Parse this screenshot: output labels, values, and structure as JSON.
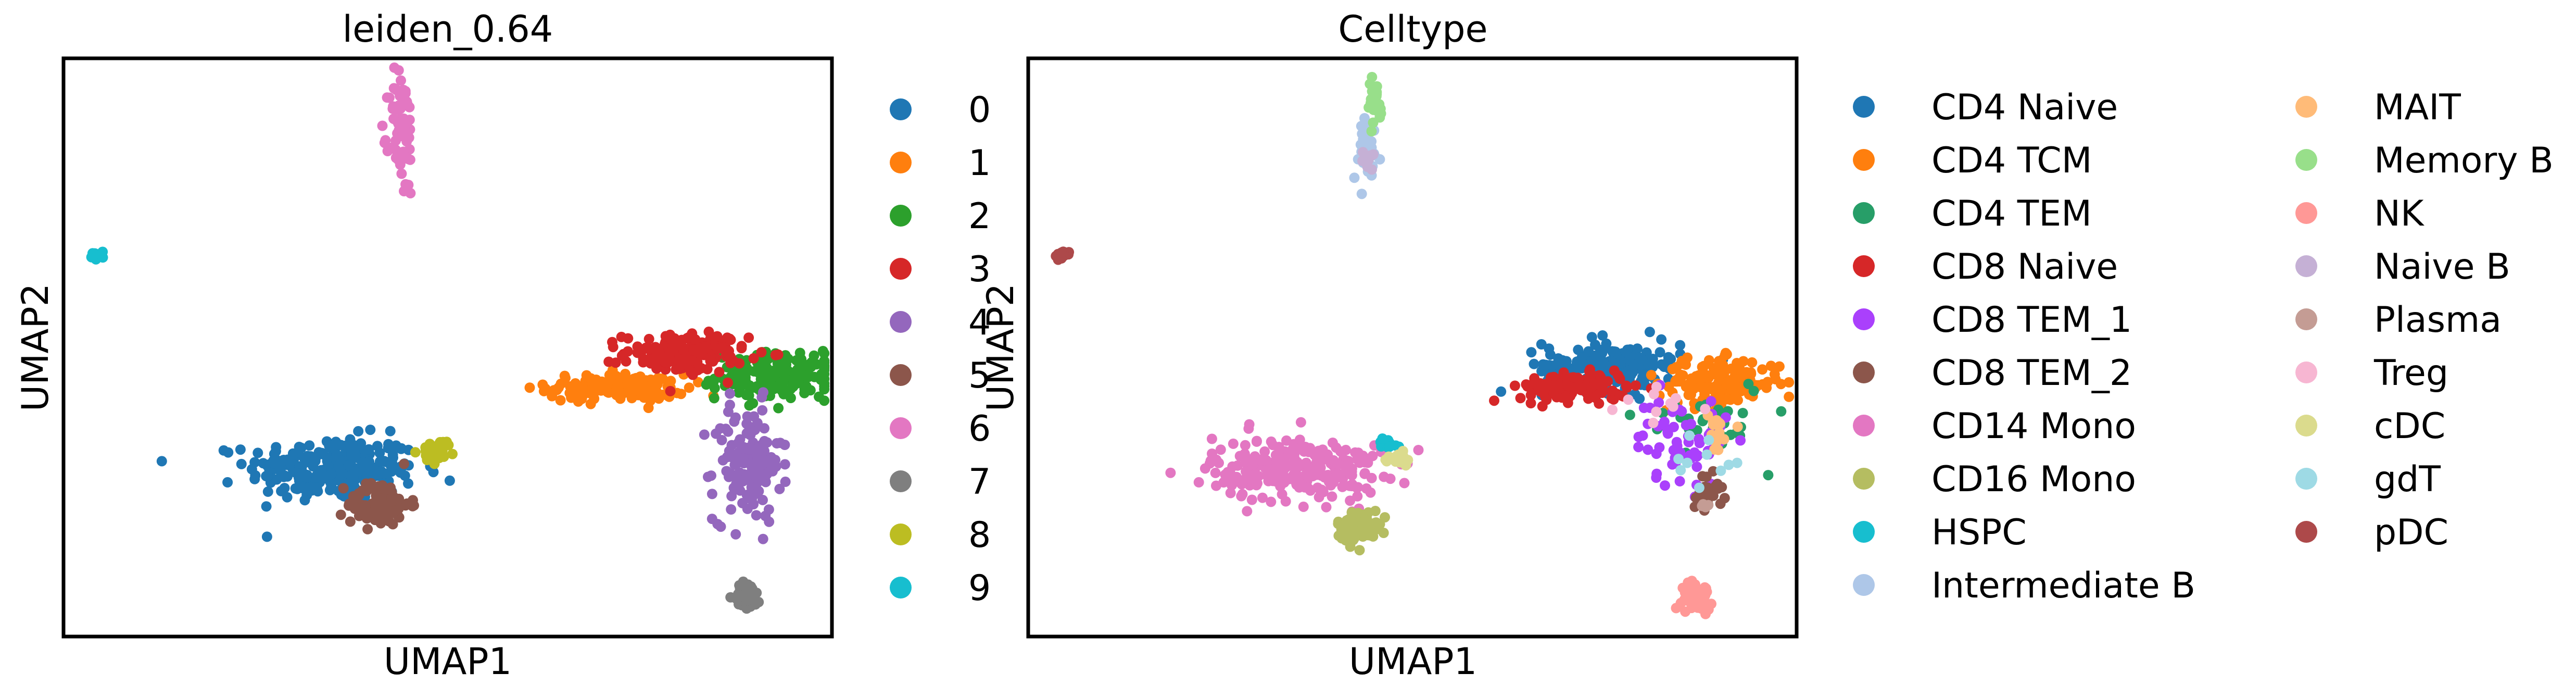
{
  "chart_data": [
    {
      "type": "scatter",
      "title": "leiden_0.64",
      "xlabel": "UMAP1",
      "ylabel": "UMAP2",
      "grid": false,
      "legend_position": "right",
      "legend": [
        {
          "label": "0",
          "color": "#1f77b4"
        },
        {
          "label": "1",
          "color": "#ff7f0e"
        },
        {
          "label": "2",
          "color": "#2ca02c"
        },
        {
          "label": "3",
          "color": "#d62728"
        },
        {
          "label": "4",
          "color": "#9467bd"
        },
        {
          "label": "5",
          "color": "#8c564b"
        },
        {
          "label": "6",
          "color": "#e377c2"
        },
        {
          "label": "7",
          "color": "#7f7f7f"
        },
        {
          "label": "8",
          "color": "#bcbd22"
        },
        {
          "label": "9",
          "color": "#17becf"
        }
      ],
      "clusters": [
        {
          "label": "0",
          "cx": 3.5,
          "cy": 2.9,
          "sx": 0.55,
          "sy": 0.28,
          "n": 260
        },
        {
          "label": "1",
          "cx": 7.2,
          "cy": 4.3,
          "sx": 0.45,
          "sy": 0.12,
          "n": 150
        },
        {
          "label": "2",
          "cx": 9.3,
          "cy": 4.5,
          "sx": 0.4,
          "sy": 0.2,
          "n": 170
        },
        {
          "label": "3",
          "cx": 8.1,
          "cy": 4.9,
          "sx": 0.4,
          "sy": 0.17,
          "n": 160
        },
        {
          "label": "4",
          "cx": 8.9,
          "cy": 3.0,
          "sx": 0.22,
          "sy": 0.5,
          "n": 140
        },
        {
          "label": "5",
          "cx": 4.1,
          "cy": 2.3,
          "sx": 0.2,
          "sy": 0.2,
          "n": 90
        },
        {
          "label": "6",
          "cx": 4.4,
          "cy": 8.7,
          "sx": 0.08,
          "sy": 0.55,
          "n": 80
        },
        {
          "label": "7",
          "cx": 8.9,
          "cy": 0.7,
          "sx": 0.09,
          "sy": 0.12,
          "n": 45
        },
        {
          "label": "8",
          "cx": 4.9,
          "cy": 3.2,
          "sx": 0.12,
          "sy": 0.1,
          "n": 25
        },
        {
          "label": "9",
          "cx": 0.45,
          "cy": 6.6,
          "sx": 0.05,
          "sy": 0.04,
          "n": 12
        }
      ]
    },
    {
      "type": "scatter",
      "title": "Celltype",
      "xlabel": "UMAP1",
      "ylabel": "UMAP2",
      "grid": false,
      "legend_position": "right",
      "legend": [
        {
          "label": "CD4 Naive",
          "color": "#1f77b4"
        },
        {
          "label": "CD4 TCM",
          "color": "#ff7f0e"
        },
        {
          "label": "CD4 TEM",
          "color": "#279e68"
        },
        {
          "label": "CD8 Naive",
          "color": "#d62728"
        },
        {
          "label": "CD8 TEM_1",
          "color": "#aa40fc"
        },
        {
          "label": "CD8 TEM_2",
          "color": "#8c564b"
        },
        {
          "label": "CD14 Mono",
          "color": "#e377c2"
        },
        {
          "label": "CD16 Mono",
          "color": "#b5bd61"
        },
        {
          "label": "HSPC",
          "color": "#17becf"
        },
        {
          "label": "Intermediate B",
          "color": "#aec7e8"
        },
        {
          "label": "MAIT",
          "color": "#ffbb78"
        },
        {
          "label": "Memory B",
          "color": "#98df8a"
        },
        {
          "label": "NK",
          "color": "#ff9896"
        },
        {
          "label": "Naive B",
          "color": "#c5b0d5"
        },
        {
          "label": "Plasma",
          "color": "#c49c94"
        },
        {
          "label": "Treg",
          "color": "#f7b6d2"
        },
        {
          "label": "cDC",
          "color": "#dbdb8d"
        },
        {
          "label": "gdT",
          "color": "#9edae5"
        },
        {
          "label": "pDC",
          "color": "#ad494a"
        }
      ],
      "clusters": [
        {
          "label": "CD4 Naive",
          "cx": 7.6,
          "cy": 4.7,
          "sx": 0.45,
          "sy": 0.22,
          "n": 170
        },
        {
          "label": "CD4 TCM",
          "cx": 9.0,
          "cy": 4.4,
          "sx": 0.4,
          "sy": 0.2,
          "n": 150
        },
        {
          "label": "CD4 TEM",
          "cx": 8.8,
          "cy": 3.8,
          "sx": 0.4,
          "sy": 0.35,
          "n": 30
        },
        {
          "label": "CD8 Naive",
          "cx": 7.1,
          "cy": 4.3,
          "sx": 0.35,
          "sy": 0.12,
          "n": 140
        },
        {
          "label": "CD8 TEM_1",
          "cx": 8.5,
          "cy": 3.4,
          "sx": 0.3,
          "sy": 0.4,
          "n": 60
        },
        {
          "label": "CD8 TEM_2",
          "cx": 8.85,
          "cy": 2.5,
          "sx": 0.1,
          "sy": 0.15,
          "n": 30
        },
        {
          "label": "CD14 Mono",
          "cx": 3.5,
          "cy": 2.9,
          "sx": 0.55,
          "sy": 0.28,
          "n": 260
        },
        {
          "label": "CD16 Mono",
          "cx": 4.3,
          "cy": 1.9,
          "sx": 0.14,
          "sy": 0.14,
          "n": 60
        },
        {
          "label": "HSPC",
          "cx": 4.7,
          "cy": 3.35,
          "sx": 0.07,
          "sy": 0.04,
          "n": 12
        },
        {
          "label": "Intermediate B",
          "cx": 4.4,
          "cy": 8.45,
          "sx": 0.09,
          "sy": 0.3,
          "n": 40
        },
        {
          "label": "MAIT",
          "cx": 8.9,
          "cy": 3.5,
          "sx": 0.12,
          "sy": 0.22,
          "n": 14
        },
        {
          "label": "Memory B",
          "cx": 4.5,
          "cy": 9.2,
          "sx": 0.06,
          "sy": 0.2,
          "n": 30
        },
        {
          "label": "NK",
          "cx": 8.7,
          "cy": 0.7,
          "sx": 0.1,
          "sy": 0.12,
          "n": 45
        },
        {
          "label": "Naive B",
          "cx": 4.45,
          "cy": 8.2,
          "sx": 0.06,
          "sy": 0.12,
          "n": 10
        },
        {
          "label": "Plasma",
          "cx": 8.8,
          "cy": 2.3,
          "sx": 0.05,
          "sy": 0.05,
          "n": 5
        },
        {
          "label": "Treg",
          "cx": 8.3,
          "cy": 4.0,
          "sx": 0.3,
          "sy": 0.2,
          "n": 10
        },
        {
          "label": "cDC",
          "cx": 4.8,
          "cy": 3.1,
          "sx": 0.12,
          "sy": 0.07,
          "n": 18
        },
        {
          "label": "gdT",
          "cx": 8.8,
          "cy": 3.0,
          "sx": 0.2,
          "sy": 0.3,
          "n": 10
        },
        {
          "label": "pDC",
          "cx": 0.45,
          "cy": 6.6,
          "sx": 0.05,
          "sy": 0.04,
          "n": 12
        }
      ]
    }
  ]
}
